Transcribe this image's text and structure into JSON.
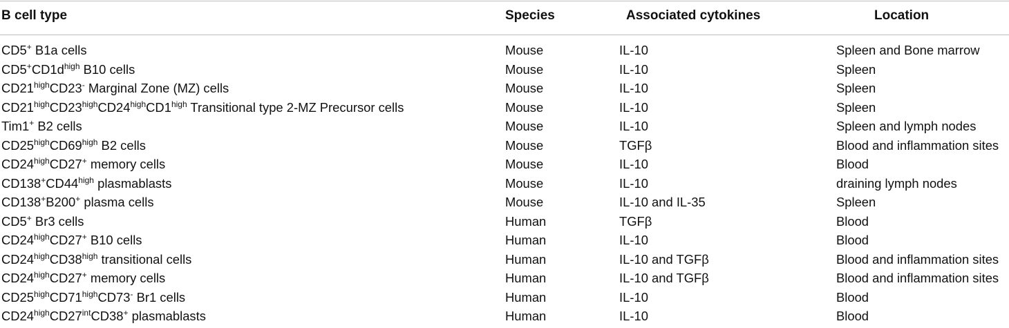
{
  "table": {
    "headers": {
      "type": "B cell type",
      "species": "Species",
      "cytokines": "Associated cytokines",
      "location": "Location"
    },
    "rows": [
      {
        "type": [
          [
            "CD5",
            "+"
          ],
          [
            " B1a cells",
            ""
          ]
        ],
        "species": "Mouse",
        "cytokines": "IL-10",
        "location": "Spleen and Bone marrow"
      },
      {
        "type": [
          [
            "CD5",
            "+"
          ],
          [
            "CD1d",
            "high"
          ],
          [
            " B10 cells",
            ""
          ]
        ],
        "species": "Mouse",
        "cytokines": "IL-10",
        "location": "Spleen"
      },
      {
        "type": [
          [
            "CD21",
            "high"
          ],
          [
            "CD23",
            "-"
          ],
          [
            " Marginal Zone (MZ) cells",
            ""
          ]
        ],
        "species": "Mouse",
        "cytokines": "IL-10",
        "location": "Spleen"
      },
      {
        "type": [
          [
            "CD21",
            "high"
          ],
          [
            "CD23",
            "high"
          ],
          [
            "CD24",
            "high"
          ],
          [
            "CD1",
            "high"
          ],
          [
            " Transitional type 2-MZ Precursor cells",
            ""
          ]
        ],
        "species": "Mouse",
        "cytokines": "IL-10",
        "location": "Spleen"
      },
      {
        "type": [
          [
            "Tim1",
            "+"
          ],
          [
            " B2 cells",
            ""
          ]
        ],
        "species": "Mouse",
        "cytokines": "IL-10",
        "location": "Spleen and lymph nodes"
      },
      {
        "type": [
          [
            "CD25",
            "high"
          ],
          [
            "CD69",
            "high"
          ],
          [
            " B2 cells",
            ""
          ]
        ],
        "species": "Mouse",
        "cytokines": "TGFβ",
        "location": "Blood and inflammation sites"
      },
      {
        "type": [
          [
            "CD24",
            "high"
          ],
          [
            "CD27",
            "+"
          ],
          [
            " memory cells",
            ""
          ]
        ],
        "species": "Mouse",
        "cytokines": "IL-10",
        "location": "Blood"
      },
      {
        "type": [
          [
            "CD138",
            "+"
          ],
          [
            "CD44",
            "high"
          ],
          [
            " plasmablasts",
            ""
          ]
        ],
        "species": "Mouse",
        "cytokines": "IL-10",
        "location": "draining lymph nodes"
      },
      {
        "type": [
          [
            "CD138",
            "+"
          ],
          [
            "B200",
            "+"
          ],
          [
            " plasma cells",
            ""
          ]
        ],
        "species": "Mouse",
        "cytokines": "IL-10 and IL-35",
        "location": "Spleen"
      },
      {
        "type": [
          [
            "CD5",
            "+"
          ],
          [
            " Br3 cells",
            ""
          ]
        ],
        "species": "Human",
        "cytokines": "TGFβ",
        "location": "Blood"
      },
      {
        "type": [
          [
            "CD24",
            "high"
          ],
          [
            "CD27",
            "+"
          ],
          [
            " B10 cells",
            ""
          ]
        ],
        "species": "Human",
        "cytokines": "IL-10",
        "location": "Blood"
      },
      {
        "type": [
          [
            "CD24",
            "high"
          ],
          [
            "CD38",
            "high"
          ],
          [
            " transitional cells",
            ""
          ]
        ],
        "species": "Human",
        "cytokines": "IL-10 and TGFβ",
        "location": "Blood and inflammation sites"
      },
      {
        "type": [
          [
            "CD24",
            "high"
          ],
          [
            "CD27",
            "+"
          ],
          [
            " memory cells",
            ""
          ]
        ],
        "species": "Human",
        "cytokines": "IL-10 and TGFβ",
        "location": "Blood and inflammation sites"
      },
      {
        "type": [
          [
            "CD25",
            "high"
          ],
          [
            "CD71",
            "high"
          ],
          [
            "CD73",
            "-"
          ],
          [
            " Br1 cells",
            ""
          ]
        ],
        "species": "Human",
        "cytokines": "IL-10",
        "location": "Blood"
      },
      {
        "type": [
          [
            "CD24",
            "high"
          ],
          [
            "CD27",
            "int"
          ],
          [
            "CD38",
            "+"
          ],
          [
            " plasmablasts",
            ""
          ]
        ],
        "species": "Human",
        "cytokines": "IL-10",
        "location": "Blood"
      }
    ]
  }
}
